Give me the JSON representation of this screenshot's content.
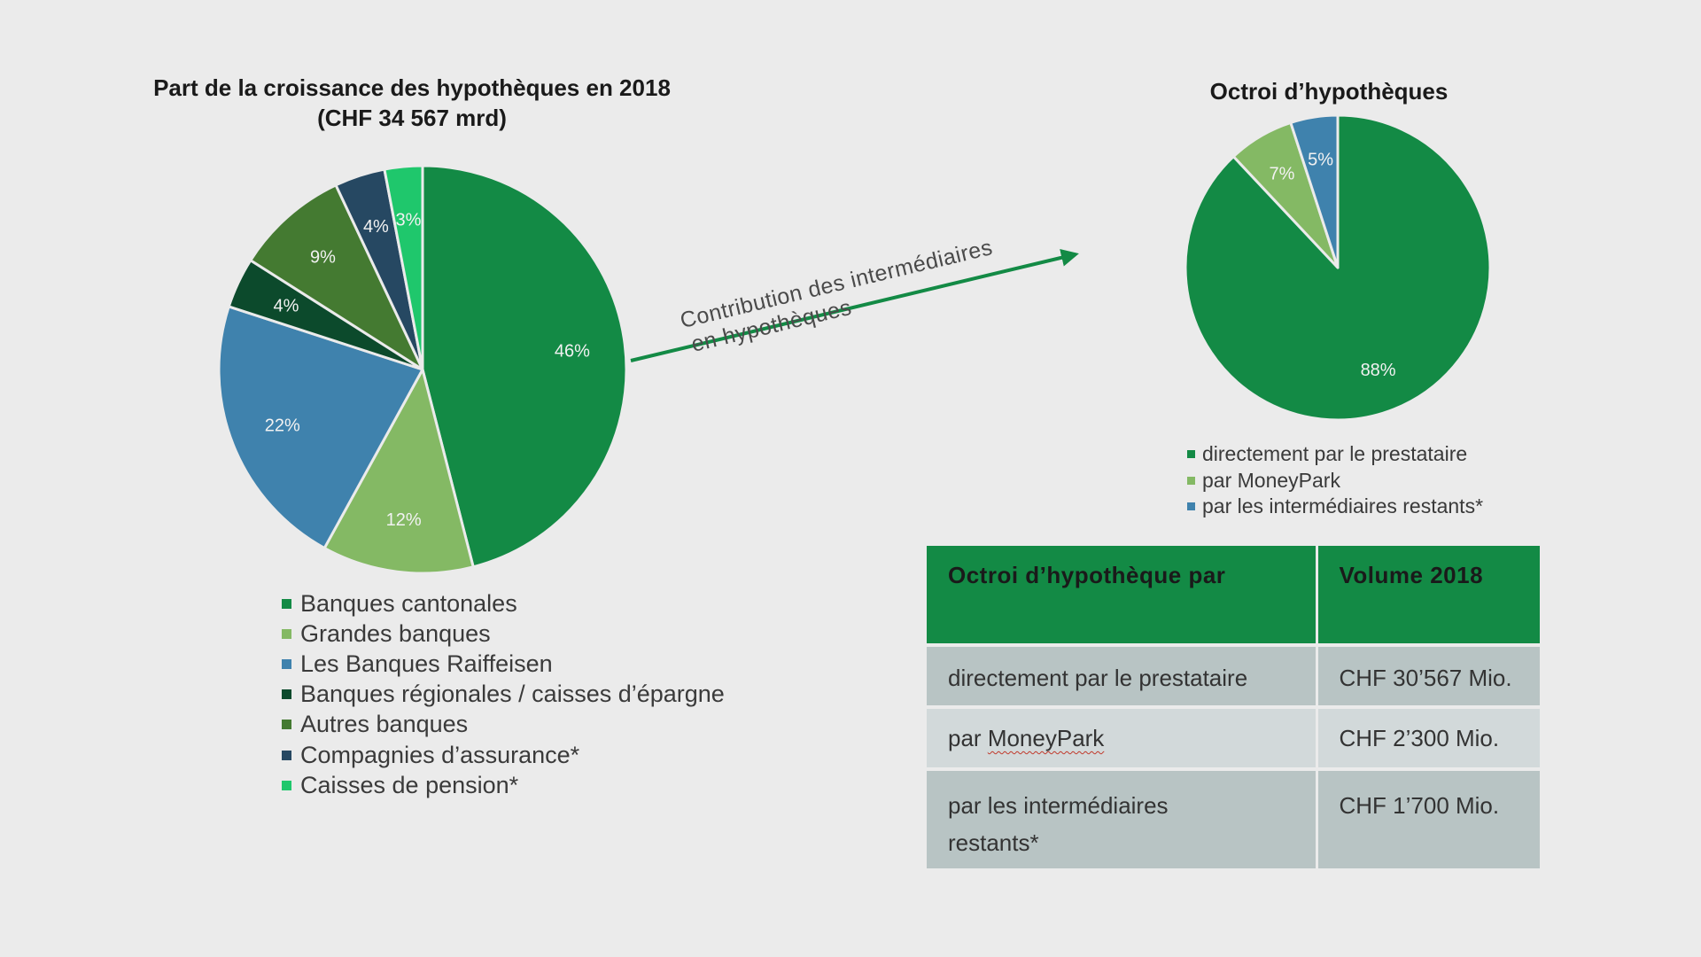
{
  "chart_data": [
    {
      "type": "pie",
      "title": "Part de la croissance des hypothèques en 2018",
      "subtitle": "(CHF 34 567 mrd)",
      "slices": [
        {
          "name": "Banques cantonales",
          "value": 46,
          "label": "46%",
          "color": "#138a45"
        },
        {
          "name": "Grandes banques",
          "value": 12,
          "label": "12%",
          "color": "#84b964"
        },
        {
          "name": "Les Banques Raiffeisen",
          "value": 22,
          "label": "22%",
          "color": "#3f82ad"
        },
        {
          "name": "Banques régionales / caisses d’épargne",
          "value": 4,
          "label": "4%",
          "color": "#0c4a2c"
        },
        {
          "name": "Autres banques",
          "value": 9,
          "label": "9%",
          "color": "#447a31"
        },
        {
          "name": "Compagnies d’assurance*",
          "value": 4,
          "label": "4%",
          "color": "#264862"
        },
        {
          "name": "Caisses de pension*",
          "value": 3,
          "label": "3%",
          "color": "#1fc76c"
        }
      ],
      "legend_position": "bottom"
    },
    {
      "type": "pie",
      "title": "Octroi d’hypothèques",
      "slices": [
        {
          "name": "directement par le prestataire",
          "value": 88,
          "label": "88%",
          "color": "#138a45"
        },
        {
          "name": "par MoneyPark",
          "value": 7,
          "label": "7%",
          "color": "#84b964"
        },
        {
          "name": "par les intermédiaires restants*",
          "value": 5,
          "label": "5%",
          "color": "#3f82ad"
        }
      ],
      "legend_position": "bottom"
    }
  ],
  "arrow": {
    "line1": "Contribution des intermédiaires",
    "line2": "en hypothèques",
    "color": "#138a45"
  },
  "table": {
    "headers": [
      "Octroi d’hypothèque par",
      "Volume 2018"
    ],
    "rows": [
      {
        "label": "directement par le prestataire",
        "volume": "CHF 30’567 Mio."
      },
      {
        "label_prefix": "par ",
        "label_link": "MoneyPark",
        "volume": "CHF 2’300 Mio."
      },
      {
        "label_line1": "par les intermédiaires",
        "label_line2": "restants*",
        "volume": "CHF 1’700 Mio."
      }
    ],
    "header_color": "#138a45"
  }
}
